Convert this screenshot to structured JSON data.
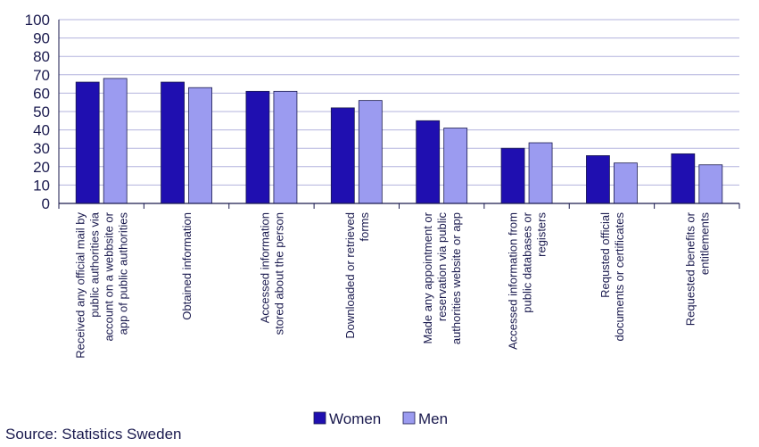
{
  "chart_data": {
    "type": "bar",
    "title": "",
    "xlabel": "",
    "ylabel": "",
    "ylim": [
      0,
      100
    ],
    "yticks": [
      0,
      10,
      20,
      30,
      40,
      50,
      60,
      70,
      80,
      90,
      100
    ],
    "grid": true,
    "legend_position": "bottom",
    "categories": [
      [
        "Received any official mail by",
        "public authorities via",
        "account on a webbsite or",
        "app of public authorities"
      ],
      [
        "Obtained information"
      ],
      [
        "Accessed information",
        "stored about the person"
      ],
      [
        "Downloaded or retrieved",
        "forms"
      ],
      [
        "Made any appointment or",
        "reservation via public",
        "authorities website or app"
      ],
      [
        "Accessed information from",
        "public databases or",
        "registers"
      ],
      [
        "Requsted official",
        "documents or certificates"
      ],
      [
        "Requested benefits or",
        "entitlements"
      ]
    ],
    "series": [
      {
        "name": "Women",
        "color": "#1f0fb0",
        "values": [
          66,
          66,
          61,
          52,
          45,
          30,
          26,
          27
        ]
      },
      {
        "name": "Men",
        "color": "#9b9bf0",
        "values": [
          68,
          63,
          61,
          56,
          41,
          33,
          22,
          21
        ]
      }
    ],
    "source": "Source: Statistics Sweden"
  }
}
